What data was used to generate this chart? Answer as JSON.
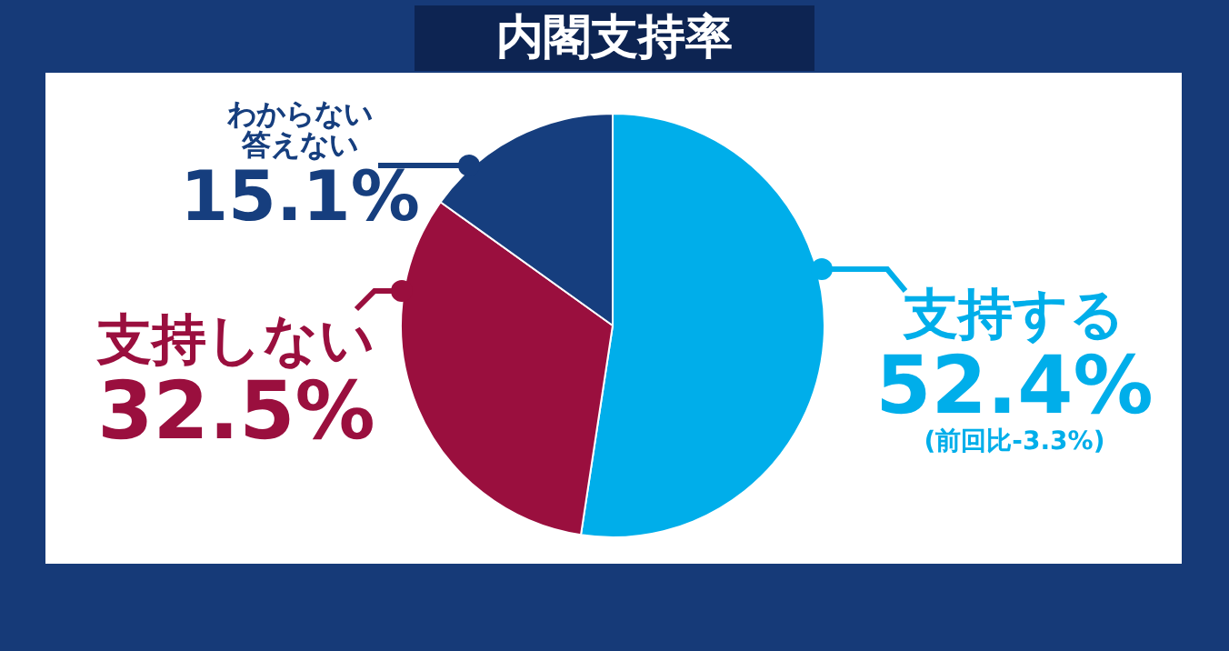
{
  "chart_data": {
    "type": "pie",
    "title": "内閣支持率",
    "categories": [
      "支持する",
      "支持しない",
      "わからない答えない"
    ],
    "values": [
      52.4,
      32.5,
      15.1
    ],
    "value_labels": [
      "52.4%",
      "32.5%",
      "15.1%"
    ],
    "colors": [
      "#00aeea",
      "#9a0f3e",
      "#163e7e"
    ],
    "annotations": [
      "(前回比-3.3%)"
    ]
  }
}
